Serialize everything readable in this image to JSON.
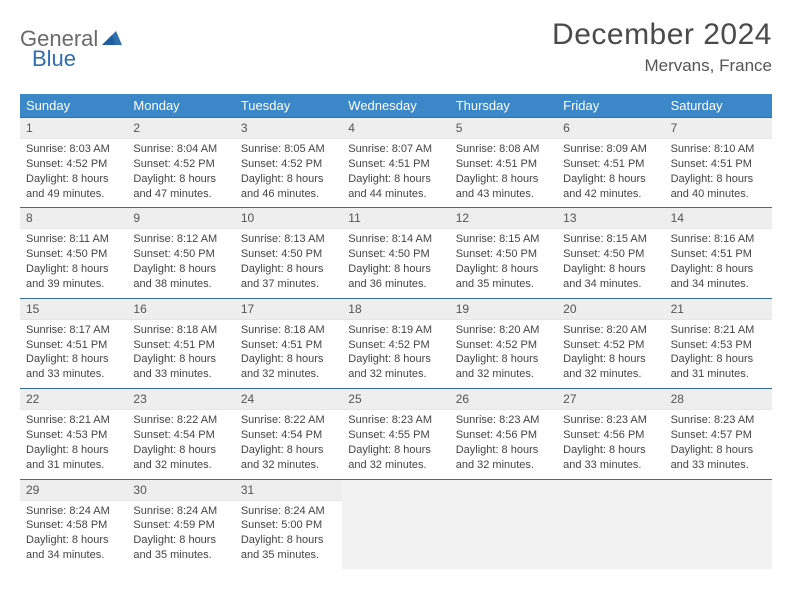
{
  "logo": {
    "part1": "General",
    "part2": "Blue"
  },
  "header": {
    "title": "December 2024",
    "location": "Mervans, France"
  },
  "colors": {
    "header_bg": "#3b87c8",
    "header_text": "#ffffff",
    "day_num_bg": "#eeeeee",
    "border_top": "#3b6f9f",
    "empty_bg": "#f2f2f2",
    "logo_gray": "#6a6a6a",
    "logo_blue": "#2f6fb0"
  },
  "dayNames": [
    "Sunday",
    "Monday",
    "Tuesday",
    "Wednesday",
    "Thursday",
    "Friday",
    "Saturday"
  ],
  "weeks": [
    [
      {
        "n": "1",
        "sr": "Sunrise: 8:03 AM",
        "ss": "Sunset: 4:52 PM",
        "d1": "Daylight: 8 hours",
        "d2": "and 49 minutes."
      },
      {
        "n": "2",
        "sr": "Sunrise: 8:04 AM",
        "ss": "Sunset: 4:52 PM",
        "d1": "Daylight: 8 hours",
        "d2": "and 47 minutes."
      },
      {
        "n": "3",
        "sr": "Sunrise: 8:05 AM",
        "ss": "Sunset: 4:52 PM",
        "d1": "Daylight: 8 hours",
        "d2": "and 46 minutes."
      },
      {
        "n": "4",
        "sr": "Sunrise: 8:07 AM",
        "ss": "Sunset: 4:51 PM",
        "d1": "Daylight: 8 hours",
        "d2": "and 44 minutes."
      },
      {
        "n": "5",
        "sr": "Sunrise: 8:08 AM",
        "ss": "Sunset: 4:51 PM",
        "d1": "Daylight: 8 hours",
        "d2": "and 43 minutes."
      },
      {
        "n": "6",
        "sr": "Sunrise: 8:09 AM",
        "ss": "Sunset: 4:51 PM",
        "d1": "Daylight: 8 hours",
        "d2": "and 42 minutes."
      },
      {
        "n": "7",
        "sr": "Sunrise: 8:10 AM",
        "ss": "Sunset: 4:51 PM",
        "d1": "Daylight: 8 hours",
        "d2": "and 40 minutes."
      }
    ],
    [
      {
        "n": "8",
        "sr": "Sunrise: 8:11 AM",
        "ss": "Sunset: 4:50 PM",
        "d1": "Daylight: 8 hours",
        "d2": "and 39 minutes."
      },
      {
        "n": "9",
        "sr": "Sunrise: 8:12 AM",
        "ss": "Sunset: 4:50 PM",
        "d1": "Daylight: 8 hours",
        "d2": "and 38 minutes."
      },
      {
        "n": "10",
        "sr": "Sunrise: 8:13 AM",
        "ss": "Sunset: 4:50 PM",
        "d1": "Daylight: 8 hours",
        "d2": "and 37 minutes."
      },
      {
        "n": "11",
        "sr": "Sunrise: 8:14 AM",
        "ss": "Sunset: 4:50 PM",
        "d1": "Daylight: 8 hours",
        "d2": "and 36 minutes."
      },
      {
        "n": "12",
        "sr": "Sunrise: 8:15 AM",
        "ss": "Sunset: 4:50 PM",
        "d1": "Daylight: 8 hours",
        "d2": "and 35 minutes."
      },
      {
        "n": "13",
        "sr": "Sunrise: 8:15 AM",
        "ss": "Sunset: 4:50 PM",
        "d1": "Daylight: 8 hours",
        "d2": "and 34 minutes."
      },
      {
        "n": "14",
        "sr": "Sunrise: 8:16 AM",
        "ss": "Sunset: 4:51 PM",
        "d1": "Daylight: 8 hours",
        "d2": "and 34 minutes."
      }
    ],
    [
      {
        "n": "15",
        "sr": "Sunrise: 8:17 AM",
        "ss": "Sunset: 4:51 PM",
        "d1": "Daylight: 8 hours",
        "d2": "and 33 minutes."
      },
      {
        "n": "16",
        "sr": "Sunrise: 8:18 AM",
        "ss": "Sunset: 4:51 PM",
        "d1": "Daylight: 8 hours",
        "d2": "and 33 minutes."
      },
      {
        "n": "17",
        "sr": "Sunrise: 8:18 AM",
        "ss": "Sunset: 4:51 PM",
        "d1": "Daylight: 8 hours",
        "d2": "and 32 minutes."
      },
      {
        "n": "18",
        "sr": "Sunrise: 8:19 AM",
        "ss": "Sunset: 4:52 PM",
        "d1": "Daylight: 8 hours",
        "d2": "and 32 minutes."
      },
      {
        "n": "19",
        "sr": "Sunrise: 8:20 AM",
        "ss": "Sunset: 4:52 PM",
        "d1": "Daylight: 8 hours",
        "d2": "and 32 minutes."
      },
      {
        "n": "20",
        "sr": "Sunrise: 8:20 AM",
        "ss": "Sunset: 4:52 PM",
        "d1": "Daylight: 8 hours",
        "d2": "and 32 minutes."
      },
      {
        "n": "21",
        "sr": "Sunrise: 8:21 AM",
        "ss": "Sunset: 4:53 PM",
        "d1": "Daylight: 8 hours",
        "d2": "and 31 minutes."
      }
    ],
    [
      {
        "n": "22",
        "sr": "Sunrise: 8:21 AM",
        "ss": "Sunset: 4:53 PM",
        "d1": "Daylight: 8 hours",
        "d2": "and 31 minutes."
      },
      {
        "n": "23",
        "sr": "Sunrise: 8:22 AM",
        "ss": "Sunset: 4:54 PM",
        "d1": "Daylight: 8 hours",
        "d2": "and 32 minutes."
      },
      {
        "n": "24",
        "sr": "Sunrise: 8:22 AM",
        "ss": "Sunset: 4:54 PM",
        "d1": "Daylight: 8 hours",
        "d2": "and 32 minutes."
      },
      {
        "n": "25",
        "sr": "Sunrise: 8:23 AM",
        "ss": "Sunset: 4:55 PM",
        "d1": "Daylight: 8 hours",
        "d2": "and 32 minutes."
      },
      {
        "n": "26",
        "sr": "Sunrise: 8:23 AM",
        "ss": "Sunset: 4:56 PM",
        "d1": "Daylight: 8 hours",
        "d2": "and 32 minutes."
      },
      {
        "n": "27",
        "sr": "Sunrise: 8:23 AM",
        "ss": "Sunset: 4:56 PM",
        "d1": "Daylight: 8 hours",
        "d2": "and 33 minutes."
      },
      {
        "n": "28",
        "sr": "Sunrise: 8:23 AM",
        "ss": "Sunset: 4:57 PM",
        "d1": "Daylight: 8 hours",
        "d2": "and 33 minutes."
      }
    ],
    [
      {
        "n": "29",
        "sr": "Sunrise: 8:24 AM",
        "ss": "Sunset: 4:58 PM",
        "d1": "Daylight: 8 hours",
        "d2": "and 34 minutes."
      },
      {
        "n": "30",
        "sr": "Sunrise: 8:24 AM",
        "ss": "Sunset: 4:59 PM",
        "d1": "Daylight: 8 hours",
        "d2": "and 35 minutes."
      },
      {
        "n": "31",
        "sr": "Sunrise: 8:24 AM",
        "ss": "Sunset: 5:00 PM",
        "d1": "Daylight: 8 hours",
        "d2": "and 35 minutes."
      },
      {
        "empty": true
      },
      {
        "empty": true
      },
      {
        "empty": true
      },
      {
        "empty": true
      }
    ]
  ]
}
